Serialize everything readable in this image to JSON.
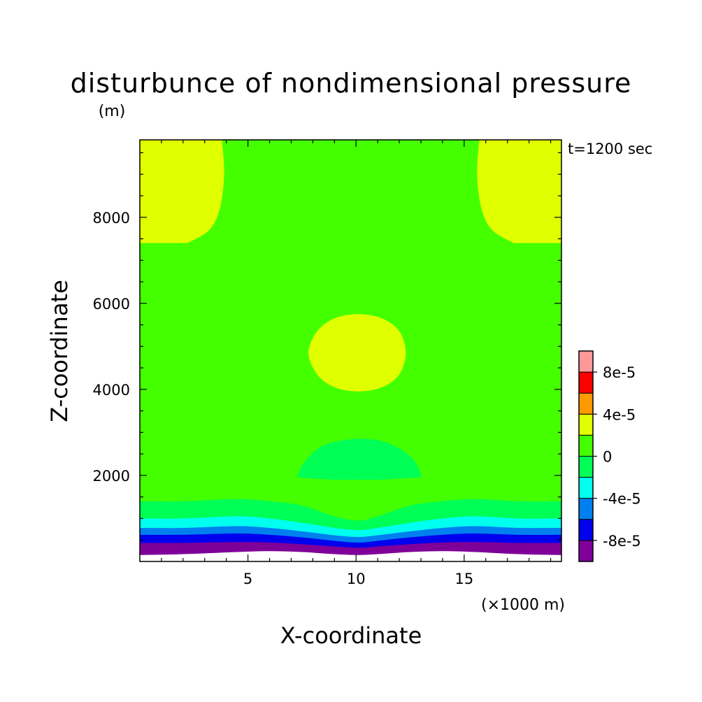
{
  "chart_data": {
    "type": "contour",
    "title": "disturbunce of nondimensional pressure",
    "yunit": "(m)",
    "time_label": "t=1200 sec",
    "xlabel": "X-coordinate",
    "xunit": "(×1000 m)",
    "ylabel": "Z-coordinate",
    "xlim": [
      0,
      19.5
    ],
    "ylim": [
      0,
      9800
    ],
    "xticks": [
      5,
      10,
      15
    ],
    "xtick_labels": [
      "5",
      "10",
      "15"
    ],
    "yticks": [
      2000,
      4000,
      6000,
      8000
    ],
    "ytick_labels": [
      "2000",
      "4000",
      "6000",
      "8000"
    ],
    "grid": false,
    "background_level_index": 5,
    "colorbar": {
      "levels": [
        {
          "lo": -0.00012,
          "hi": -8e-05,
          "color": "#7f0099"
        },
        {
          "lo": -8e-05,
          "hi": -6e-05,
          "color": "#0000ee"
        },
        {
          "lo": -6e-05,
          "hi": -4e-05,
          "color": "#0080ee"
        },
        {
          "lo": -4e-05,
          "hi": -2e-05,
          "color": "#00ffee"
        },
        {
          "lo": -2e-05,
          "hi": 0,
          "color": "#00ff55"
        },
        {
          "lo": 0,
          "hi": 2e-05,
          "color": "#44ff00"
        },
        {
          "lo": 2e-05,
          "hi": 4e-05,
          "color": "#e0ff00"
        },
        {
          "lo": 4e-05,
          "hi": 6e-05,
          "color": "#ff9900"
        },
        {
          "lo": 6e-05,
          "hi": 8e-05,
          "color": "#ff0000"
        },
        {
          "lo": 8e-05,
          "hi": 0.0001,
          "color": "#ff9999"
        }
      ],
      "tick_labels": [
        {
          "value": 8e-05,
          "text": "8e-5"
        },
        {
          "value": 4e-05,
          "text": "4e-5"
        },
        {
          "value": 0,
          "text": "0"
        },
        {
          "value": -4e-05,
          "text": "-4e-5"
        },
        {
          "value": -8e-05,
          "text": "-8e-5"
        }
      ]
    },
    "regions": [
      {
        "name": "upper-left-positive-cell",
        "level_index": 6,
        "x": [
          0,
          3.8,
          3.9,
          3.7,
          3.2,
          2.2,
          1.0,
          0
        ],
        "z": [
          9800,
          9800,
          9000,
          8200,
          7700,
          7400,
          7400,
          7400
        ]
      },
      {
        "name": "upper-right-positive-cell",
        "level_index": 6,
        "x": [
          19.5,
          15.7,
          15.6,
          15.8,
          16.3,
          17.3,
          18.5,
          19.5
        ],
        "z": [
          9800,
          9800,
          9000,
          8200,
          7700,
          7400,
          7400,
          7400
        ]
      },
      {
        "name": "mid-level-positive-cell",
        "level_index": 6,
        "x": [
          7.8,
          8.2,
          9.0,
          10.1,
          11.2,
          12.0,
          12.3,
          12.0,
          11.2,
          10.1,
          9.0,
          8.2
        ],
        "z": [
          4850,
          5350,
          5650,
          5750,
          5650,
          5350,
          4850,
          4350,
          4050,
          3950,
          4050,
          4350
        ]
      },
      {
        "name": "low-level-negative-cell",
        "level_index": 4,
        "x": [
          7.3,
          7.6,
          8.5,
          10.1,
          11.5,
          12.6,
          13.0,
          12.8,
          11.0,
          10.1,
          9.0,
          7.4
        ],
        "z": [
          2000,
          2300,
          2700,
          2850,
          2750,
          2400,
          2000,
          1950,
          1900,
          1900,
          1900,
          1950
        ]
      }
    ],
    "bands": [
      {
        "name": "band-0-to-minus-2e-5",
        "level_index": 4,
        "top_x": [
          0,
          2,
          4.5,
          6,
          7.5,
          9,
          10.1,
          11,
          12.5,
          14,
          15.5,
          17.5,
          19.5
        ],
        "top_z": [
          1400,
          1400,
          1450,
          1400,
          1300,
          1050,
          950,
          1050,
          1300,
          1400,
          1450,
          1400,
          1400
        ]
      },
      {
        "name": "band-minus-2e-5-to-minus-4e-5",
        "level_index": 3,
        "top_x": [
          0,
          2,
          4.5,
          6,
          7.5,
          9,
          10.1,
          11,
          12.5,
          14,
          15.5,
          17.5,
          19.5
        ],
        "top_z": [
          1000,
          1000,
          1050,
          1000,
          900,
          780,
          730,
          780,
          900,
          1000,
          1050,
          1000,
          1000
        ]
      },
      {
        "name": "band-minus-4e-5-to-minus-6e-5",
        "level_index": 2,
        "top_x": [
          0,
          2,
          4.5,
          6,
          7.5,
          9,
          10.1,
          11,
          12.5,
          14,
          15.5,
          17.5,
          19.5
        ],
        "top_z": [
          780,
          780,
          820,
          780,
          700,
          610,
          570,
          610,
          700,
          780,
          820,
          780,
          780
        ]
      },
      {
        "name": "band-minus-6e-5-to-minus-8e-5",
        "level_index": 1,
        "top_x": [
          0,
          2,
          4.5,
          6,
          7.5,
          9,
          10.1,
          11,
          12.5,
          14,
          15.5,
          17.5,
          19.5
        ],
        "top_z": [
          620,
          620,
          650,
          620,
          560,
          480,
          440,
          480,
          560,
          620,
          650,
          620,
          620
        ]
      },
      {
        "name": "band-below-minus-8e-5",
        "level_index": 0,
        "top_x": [
          0,
          2,
          4.5,
          6,
          7.5,
          9,
          10.1,
          11,
          12.5,
          14,
          15.5,
          17.5,
          19.5
        ],
        "top_z": [
          430,
          430,
          450,
          440,
          400,
          350,
          320,
          350,
          400,
          440,
          450,
          430,
          430
        ]
      }
    ],
    "blank_bottom": {
      "name": "blank-bottom-area",
      "top_x": [
        0,
        2,
        4.5,
        6,
        7.5,
        9,
        10.1,
        11,
        12.5,
        14,
        15.5,
        17.5,
        19.5
      ],
      "top_z": [
        150,
        170,
        220,
        240,
        220,
        170,
        150,
        170,
        220,
        240,
        220,
        170,
        150
      ]
    }
  }
}
